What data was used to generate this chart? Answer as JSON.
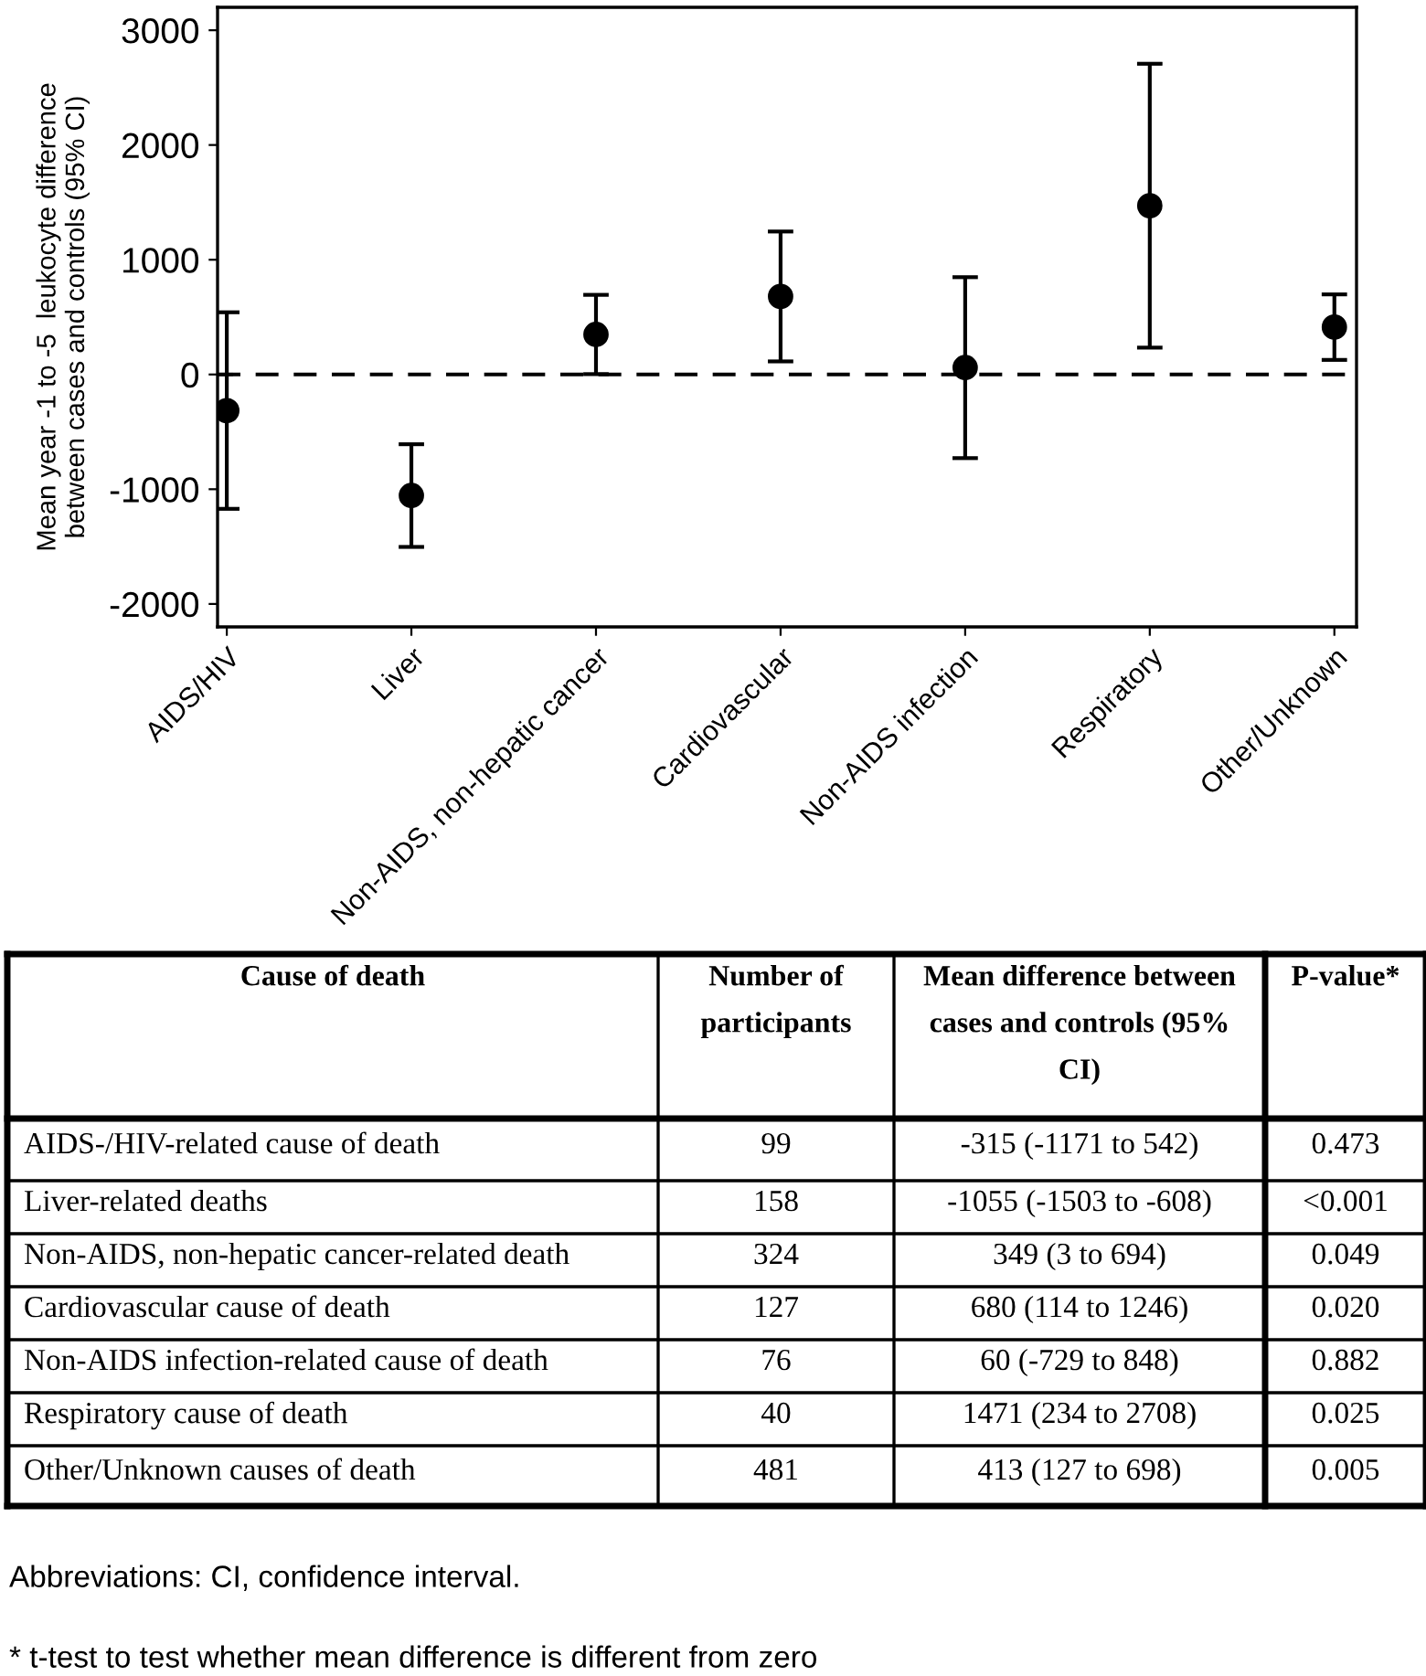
{
  "chart_data": {
    "type": "scatter",
    "ylabel": "Mean year -1 to -5  leukocyte difference\nbetween cases and controls (95% CI)",
    "categories": [
      "AIDS/HIV",
      "Liver",
      "Non-AIDS, non-hepatic cancer",
      "Cardiovascular",
      "Non-AIDS infection",
      "Respiratory",
      "Other/Unknown"
    ],
    "values": [
      -315,
      -1055,
      349,
      680,
      60,
      1471,
      413
    ],
    "errors": [
      [
        -1171,
        542
      ],
      [
        -1503,
        -608
      ],
      [
        3,
        694
      ],
      [
        114,
        1246
      ],
      [
        -729,
        848
      ],
      [
        234,
        2708
      ],
      [
        127,
        698
      ]
    ],
    "color": "#000000",
    "marker": "circle",
    "ylim": [
      -2200,
      3200
    ],
    "yticks": [
      -2000,
      -1000,
      0,
      1000,
      2000,
      3000
    ],
    "grid": false,
    "legend": false,
    "ref_lines": [
      {
        "axis": "y",
        "value": 0,
        "line_style": "dashed",
        "color": "#000000"
      }
    ],
    "annotations": [
      "Cause of death",
      "Number of\nparticipants",
      "Mean difference between\ncases and controls (95%\nCI)",
      "P-value*",
      "AIDS-/HIV-related cause of death",
      "99",
      "-315 (-1171 to 542)",
      "0.473",
      "Liver-related deaths",
      "158",
      "-1055 (-1503 to -608)",
      "<0.001",
      "Non-AIDS, non-hepatic cancer-related death",
      "324",
      "349 (3 to 694)",
      "0.049",
      "Cardiovascular cause of death",
      "127",
      "680 (114 to 1246)",
      "0.020",
      "Non-AIDS infection-related cause of death",
      "76",
      "60 (-729 to 848)",
      "0.882",
      "Respiratory cause of death",
      "40",
      "1471 (234 to 2708)",
      "0.025",
      "Other/Unknown causes of death",
      "481",
      "413 (127 to 698)",
      "0.005",
      "Abbreviations: CI, confidence interval.",
      "* t-test to test whether mean difference is different from zero"
    ]
  }
}
